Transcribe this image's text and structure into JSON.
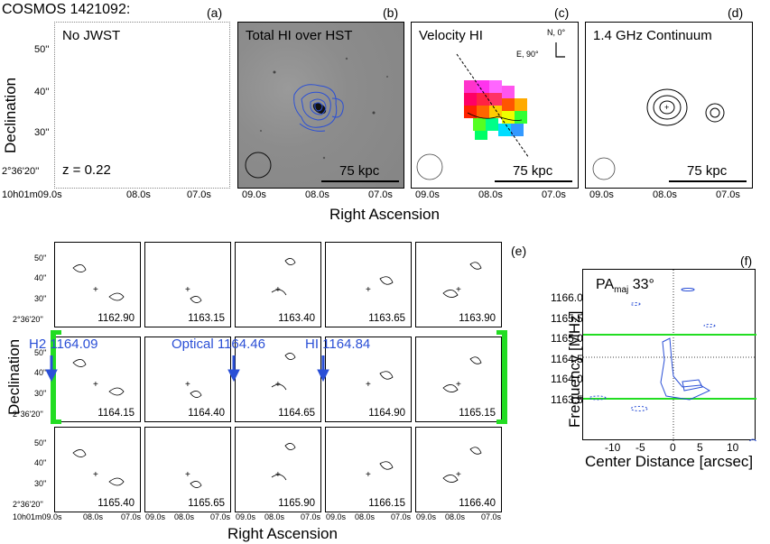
{
  "figure": {
    "object_title": "COSMOS 1421092:",
    "top_xlabel": "Right Ascension",
    "top_ylabel": "Declination",
    "bottom_xlabel": "Right Ascension",
    "bottom_ylabel": "Declination"
  },
  "panels": {
    "a": {
      "letter": "(a)",
      "title": "No JWST",
      "note": "z = 0.22"
    },
    "b": {
      "letter": "(b)",
      "title": "Total HI over HST",
      "scale": "75 kpc"
    },
    "c": {
      "letter": "(c)",
      "title": "Velocity HI",
      "scale": "75 kpc",
      "compass_n": "N, 0°",
      "compass_e": "E, 90°"
    },
    "d": {
      "letter": "(d)",
      "title": "1.4 GHz Continuum",
      "scale": "75 kpc"
    },
    "e": {
      "letter": "(e)"
    },
    "f": {
      "letter": "(f)",
      "pa_label": "PA",
      "pa_sub": "maj",
      "pa_value": " 33°"
    }
  },
  "axes_top": {
    "dec_ticks": [
      "50''",
      "40''",
      "30''",
      "2°36'20''"
    ],
    "ra_ticks_a": [
      "10h01m09.0s",
      "08.0s",
      "07.0s"
    ],
    "ra_ticks": [
      "09.0s",
      "08.0s",
      "07.0s"
    ]
  },
  "axes_grid": {
    "dec_ticks": [
      "50''",
      "40''",
      "30''",
      "2°36'20''"
    ],
    "ra_ticks": [
      "10h01m09.0s",
      "08.0s",
      "07.0s"
    ],
    "ra_ticks_short": [
      "09.0s",
      "08.0s",
      "07.0s"
    ]
  },
  "channels": [
    [
      "1162.90",
      "1163.15",
      "1163.40",
      "1163.65",
      "1163.90"
    ],
    [
      "1164.15",
      "1164.40",
      "1164.65",
      "1164.90",
      "1165.15"
    ],
    [
      "1165.40",
      "1165.65",
      "1165.90",
      "1166.15",
      "1166.40"
    ]
  ],
  "markers": {
    "h2": "H2 1164.09",
    "optical": "Optical 1164.46",
    "hi": "HI 1164.84"
  },
  "pv": {
    "ylabel": "Frequency [MHz]",
    "xlabel": "Center Distance [arcsec]",
    "yticks": [
      "1166.0",
      "1165.5",
      "1165.0",
      "1164.5",
      "1164.0",
      "1163.5"
    ],
    "xticks": [
      "-10",
      "-5",
      "0",
      "5",
      "10"
    ]
  },
  "colors": {
    "accent_blue": "#2a4fd6",
    "marker_green": "#22dd22"
  }
}
